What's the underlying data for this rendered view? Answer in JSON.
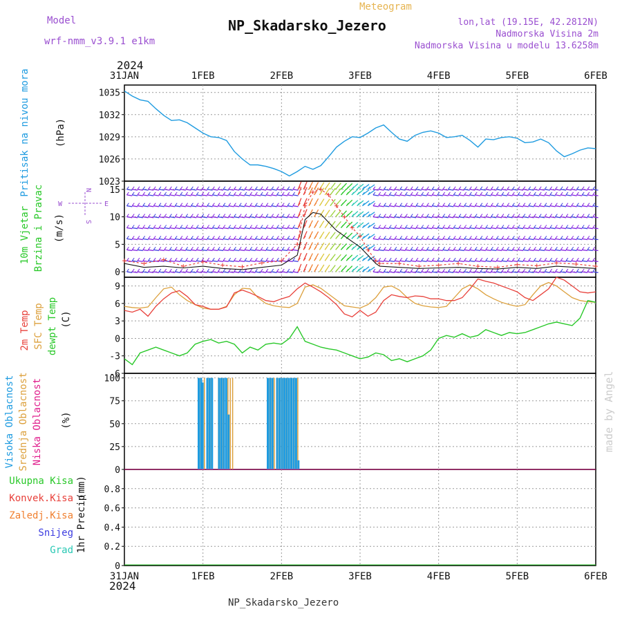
{
  "header": {
    "model_label": "Model",
    "model_name": "wrf-nmm_v3.9.1 e1km",
    "meteogram_label": "Meteogram",
    "station": "NP_Skadarsko_Jezero",
    "lonlat": "lon,lat (19.15E, 42.2812N)",
    "elevation": "Nadmorska Visina 2m",
    "model_elevation": "Nadmorska Visina u modelu 13.6258m",
    "footer_station": "NP_Skadarsko_Jezero",
    "watermark": "made by Angel"
  },
  "colors": {
    "pressure": "#1e9be0",
    "temp2m": "#e8403a",
    "sfctemp": "#dca03c",
    "dewpoint": "#28c828",
    "cloud_high": "#1e9be0",
    "cloud_mid": "#dca03c",
    "cloud_low": "#e01e8c",
    "wind_barb": "#8020e0",
    "model_label": "#9a4fd0",
    "title_label": "#e6b450",
    "precip_total": "#28c828",
    "precip_conv": "#e8403a",
    "precip_frz": "#f08030",
    "precip_snow": "#3c3ce0",
    "precip_hail": "#28c8b4"
  },
  "x_axis": {
    "top_year": "2024",
    "bottom_year": "2024",
    "ticks": [
      "31JAN",
      "1FEB",
      "2FEB",
      "3FEB",
      "4FEB",
      "5FEB",
      "6FEB"
    ]
  },
  "chart_data": [
    {
      "type": "line",
      "panel": "pressure",
      "ylabel_main": "Pritisak na nivou mora",
      "ylabel_unit": "(hPa)",
      "ylim": [
        1023,
        1036
      ],
      "yticks": [
        "1035",
        "1032",
        "1029",
        "1026",
        "1023"
      ],
      "x": [
        0,
        0.1,
        0.2,
        0.3,
        0.4,
        0.5,
        0.6,
        0.7,
        0.8,
        0.9,
        1.0,
        1.1,
        1.2,
        1.3,
        1.4,
        1.5,
        1.6,
        1.7,
        1.8,
        1.9,
        2.0,
        2.1,
        2.2,
        2.3,
        2.4,
        2.5,
        2.6,
        2.7,
        2.8,
        2.9,
        3.0,
        3.1,
        3.2,
        3.3,
        3.4,
        3.5,
        3.6,
        3.7,
        3.8,
        3.9,
        4.0,
        4.1,
        4.2,
        4.3,
        4.4,
        4.5,
        4.6,
        4.7,
        4.8,
        4.9,
        5.0,
        5.1,
        5.2,
        5.3,
        5.4,
        5.5,
        5.6,
        5.7,
        5.8,
        5.9,
        6.0
      ],
      "series": [
        {
          "values": [
            1035.2,
            1034.5,
            1034.0,
            1033.8,
            1032.8,
            1031.9,
            1031.2,
            1031.3,
            1030.9,
            1030.2,
            1029.5,
            1029.0,
            1028.9,
            1028.5,
            1027.0,
            1026.0,
            1025.2,
            1025.2,
            1025.0,
            1024.7,
            1024.3,
            1023.7,
            1024.3,
            1025.0,
            1024.6,
            1025.1,
            1026.3,
            1027.6,
            1028.4,
            1029.0,
            1028.9,
            1029.5,
            1030.2,
            1030.6,
            1029.6,
            1028.7,
            1028.4,
            1029.2,
            1029.6,
            1029.8,
            1029.5,
            1028.9,
            1029.0,
            1029.2,
            1028.5,
            1027.6,
            1028.7,
            1028.6,
            1028.9,
            1029.0,
            1028.8,
            1028.2,
            1028.3,
            1028.7,
            1028.2,
            1027.1,
            1026.3,
            1026.7,
            1027.2,
            1027.5,
            1027.4
          ]
        }
      ]
    },
    {
      "type": "line",
      "panel": "wind",
      "ylabel_main": "10m Vjetar",
      "ylabel_main2": "Brzina i Pravac",
      "ylabel_unit": "(m/s)",
      "compass": [
        "N",
        "S",
        "W",
        "E"
      ],
      "ylim": [
        -1,
        16.5
      ],
      "yticks": [
        "15",
        "10",
        "5",
        "0"
      ],
      "barb_levels": [
        0,
        2,
        4,
        6,
        8,
        10,
        12,
        14,
        15
      ],
      "x": [
        0,
        0.25,
        0.5,
        0.75,
        1.0,
        1.25,
        1.5,
        1.75,
        2.0,
        2.2,
        2.3,
        2.4,
        2.5,
        2.6,
        2.7,
        2.8,
        2.9,
        3.0,
        3.1,
        3.2,
        3.25,
        3.5,
        3.75,
        4.0,
        4.25,
        4.5,
        4.75,
        5.0,
        5.25,
        5.5,
        5.75,
        6.0
      ],
      "series": [
        {
          "name_hidden": "speed",
          "values": [
            1.5,
            0.8,
            1.0,
            0.7,
            1.0,
            0.6,
            0.4,
            0.8,
            1.2,
            3.0,
            9.5,
            10.8,
            10.5,
            9.0,
            7.5,
            6.5,
            5.5,
            4.5,
            3.0,
            1.5,
            1.0,
            0.8,
            0.6,
            0.7,
            0.8,
            0.6,
            0.5,
            0.8,
            0.6,
            1.0,
            0.8,
            0.6
          ]
        },
        {
          "name_hidden": "gust",
          "values": [
            2.0,
            1.5,
            2.2,
            1.0,
            1.8,
            1.2,
            0.9,
            1.6,
            2.0,
            5.0,
            12.0,
            14.5,
            15.0,
            14.0,
            12.0,
            10.0,
            8.0,
            6.5,
            4.0,
            2.0,
            1.5,
            1.5,
            1.0,
            1.2,
            1.5,
            1.0,
            0.8,
            1.3,
            1.1,
            1.6,
            1.4,
            1.0
          ]
        }
      ]
    },
    {
      "type": "line",
      "panel": "temperature",
      "ylabel_main": "2m Temp",
      "ylabel_main2": "SFC Temp",
      "ylabel_main3": "dewpt Temp",
      "ylabel_unit": "(C)",
      "ylim": [
        -6,
        10.5
      ],
      "yticks": [
        "9",
        "6",
        "3",
        "0",
        "-3",
        "-6"
      ],
      "x": [
        0,
        0.1,
        0.2,
        0.3,
        0.4,
        0.5,
        0.6,
        0.7,
        0.8,
        0.9,
        1.0,
        1.1,
        1.2,
        1.3,
        1.4,
        1.5,
        1.6,
        1.7,
        1.8,
        1.9,
        2.0,
        2.1,
        2.2,
        2.3,
        2.4,
        2.5,
        2.6,
        2.7,
        2.8,
        2.9,
        3.0,
        3.1,
        3.2,
        3.3,
        3.4,
        3.5,
        3.6,
        3.7,
        3.8,
        3.9,
        4.0,
        4.1,
        4.2,
        4.3,
        4.4,
        4.5,
        4.6,
        4.7,
        4.8,
        4.9,
        5.0,
        5.1,
        5.2,
        5.3,
        5.4,
        5.5,
        5.6,
        5.7,
        5.8,
        5.9,
        6.0
      ],
      "series": [
        {
          "name_hidden": "temp2m",
          "values": [
            4.8,
            4.5,
            5.0,
            3.8,
            5.5,
            6.8,
            7.8,
            8.2,
            7.2,
            5.8,
            5.5,
            5.0,
            5.0,
            5.4,
            7.8,
            8.3,
            7.8,
            7.2,
            6.5,
            6.3,
            6.8,
            7.2,
            8.5,
            9.5,
            8.8,
            8.0,
            7.0,
            5.8,
            4.2,
            3.7,
            4.8,
            3.8,
            4.5,
            6.5,
            7.5,
            7.2,
            7.0,
            7.3,
            7.2,
            6.8,
            6.8,
            6.5,
            6.5,
            7.0,
            8.5,
            10.2,
            9.8,
            9.5,
            9.0,
            8.5,
            8.0,
            7.0,
            6.5,
            7.5,
            8.5,
            10.5,
            10.0,
            9.0,
            8.0,
            7.8,
            8.0
          ]
        },
        {
          "name_hidden": "sfctemp",
          "values": [
            5.5,
            5.3,
            5.2,
            5.4,
            7.0,
            8.5,
            8.8,
            7.5,
            6.5,
            5.8,
            5.2,
            5.0,
            5.0,
            5.5,
            7.5,
            8.6,
            8.5,
            7.0,
            6.0,
            5.6,
            5.4,
            5.3,
            6.0,
            8.8,
            9.2,
            8.6,
            7.6,
            6.6,
            5.6,
            5.4,
            5.2,
            5.8,
            7.0,
            8.8,
            9.0,
            8.3,
            7.0,
            6.0,
            5.6,
            5.4,
            5.3,
            5.5,
            7.0,
            8.5,
            9.2,
            8.5,
            7.5,
            6.8,
            6.2,
            5.8,
            5.5,
            5.8,
            7.5,
            9.0,
            9.6,
            9.0,
            8.0,
            7.0,
            6.5,
            6.3,
            6.2
          ]
        },
        {
          "name_hidden": "dewpoint",
          "values": [
            -3.5,
            -4.5,
            -2.5,
            -2.0,
            -1.5,
            -2.0,
            -2.5,
            -3.0,
            -2.5,
            -1.0,
            -0.5,
            -0.2,
            -0.8,
            -0.5,
            -1.0,
            -2.5,
            -1.5,
            -2.0,
            -1.0,
            -0.8,
            -1.0,
            0.0,
            2.0,
            -0.5,
            -1.0,
            -1.5,
            -1.8,
            -2.0,
            -2.5,
            -3.0,
            -3.5,
            -3.2,
            -2.5,
            -2.8,
            -3.8,
            -3.5,
            -4.0,
            -3.5,
            -3.0,
            -2.0,
            0.0,
            0.5,
            0.2,
            0.8,
            0.2,
            0.5,
            1.5,
            1.0,
            0.5,
            1.0,
            0.8,
            1.0,
            1.5,
            2.0,
            2.5,
            2.8,
            2.5,
            2.2,
            3.5,
            6.5,
            6.2
          ]
        }
      ]
    },
    {
      "type": "bar",
      "panel": "clouds",
      "ylabel_main": "Visoka Oblacnost",
      "ylabel_main2": "Srednja Oblacnost",
      "ylabel_main3": "Niska Oblacnost",
      "ylabel_unit": "(%)",
      "ylim": [
        0,
        105
      ],
      "yticks": [
        "100",
        "75",
        "50",
        "25",
        "0"
      ],
      "x": [
        0.95,
        0.98,
        1.0,
        1.03,
        1.06,
        1.09,
        1.12,
        1.15,
        1.18,
        1.21,
        1.24,
        1.27,
        1.3,
        1.33,
        1.36,
        1.39,
        1.83,
        1.86,
        1.89,
        1.92,
        1.95,
        1.98,
        2.01,
        2.04,
        2.07,
        2.1,
        2.13,
        2.16,
        2.19,
        2.22
      ],
      "series": [
        {
          "name_hidden": "high",
          "values": [
            100,
            100,
            95,
            0,
            100,
            100,
            100,
            0,
            0,
            100,
            100,
            100,
            100,
            60,
            0,
            0,
            100,
            100,
            100,
            0,
            100,
            100,
            100,
            100,
            100,
            100,
            100,
            100,
            100,
            10
          ]
        },
        {
          "name_hidden": "mid",
          "values": [
            100,
            0,
            100,
            0,
            100,
            100,
            0,
            0,
            100,
            100,
            100,
            0,
            100,
            100,
            100,
            0,
            100,
            100,
            100,
            100,
            100,
            100,
            100,
            100,
            100,
            100,
            100,
            100,
            100,
            0
          ]
        }
      ]
    },
    {
      "type": "line",
      "panel": "precip",
      "ylabel_main": "1hr Precip",
      "ylabel_unit": "(mm)",
      "legend": [
        "Ukupna Kisa",
        "Konvek.Kisa",
        "Zaledj.Kisa",
        "Snijeg",
        "Grad"
      ],
      "ylim": [
        0,
        1.0
      ],
      "yticks": [
        "0.8",
        "0.6",
        "0.4",
        "0.2",
        "0"
      ],
      "x": [
        0,
        6
      ],
      "series": [
        {
          "name_hidden": "total",
          "values": [
            0,
            0
          ]
        }
      ]
    }
  ]
}
